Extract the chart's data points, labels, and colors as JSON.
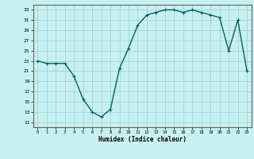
{
  "x": [
    0,
    1,
    2,
    3,
    4,
    5,
    6,
    7,
    8,
    9,
    10,
    11,
    12,
    13,
    14,
    15,
    16,
    17,
    18,
    19,
    20,
    21,
    22,
    23
  ],
  "y": [
    23,
    22.5,
    22.5,
    22.5,
    20,
    15.5,
    13,
    12,
    13.5,
    21.5,
    25.5,
    30,
    32,
    32.5,
    33,
    33,
    32.5,
    33,
    32.5,
    32,
    31.5,
    25,
    31,
    21
  ],
  "line_color": "#006060",
  "bg_color": "#c8f0f0",
  "grid_color": "#a0d4d4",
  "xlabel": "Humidex (Indice chaleur)",
  "xlim": [
    -0.5,
    23.5
  ],
  "ylim": [
    10,
    34
  ],
  "yticks": [
    11,
    13,
    15,
    17,
    19,
    21,
    23,
    25,
    27,
    29,
    31,
    33
  ],
  "xticks": [
    0,
    1,
    2,
    3,
    4,
    5,
    6,
    7,
    8,
    9,
    10,
    11,
    12,
    13,
    14,
    15,
    16,
    17,
    18,
    19,
    20,
    21,
    22,
    23
  ],
  "marker": "+",
  "marker_size": 3,
  "line_width": 1.0
}
